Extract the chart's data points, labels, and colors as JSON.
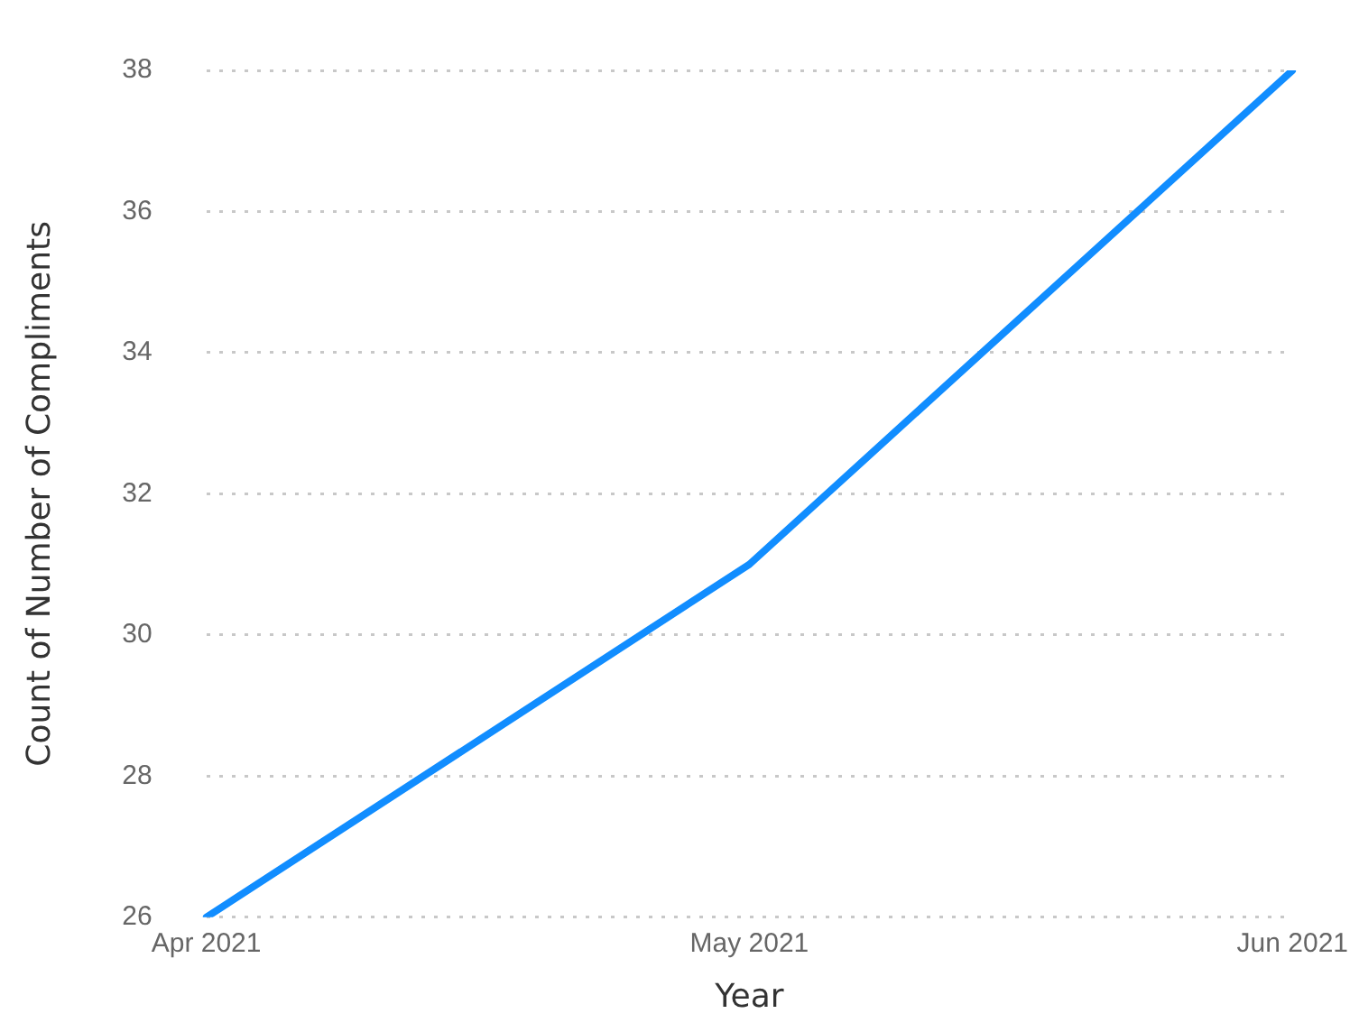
{
  "chart_data": {
    "type": "line",
    "xlabel": "Year",
    "ylabel": "Count of Number of Compliments",
    "categories": [
      "Apr 2021",
      "May 2021",
      "Jun 2021"
    ],
    "series": [
      {
        "color": "#118dff",
        "values": [
          26,
          31,
          38
        ]
      }
    ],
    "ylim": [
      26,
      38
    ],
    "yticks": [
      26,
      28,
      30,
      32,
      34,
      36,
      38
    ],
    "grid": "y",
    "line_style": "solid"
  }
}
